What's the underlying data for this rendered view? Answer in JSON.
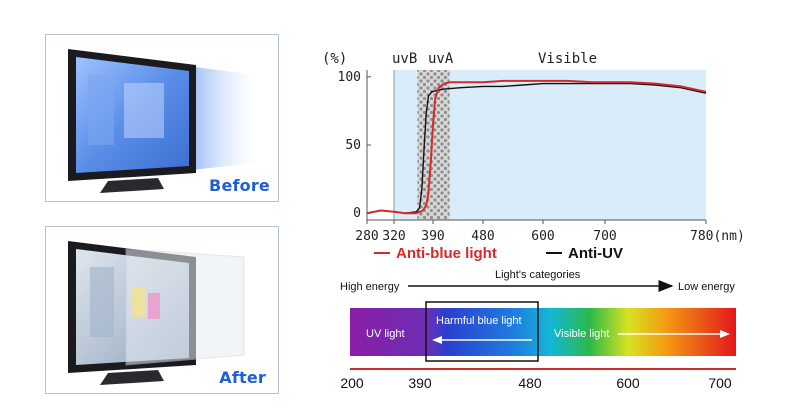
{
  "before_label": "Before",
  "after_label": "After",
  "chart_data": {
    "type": "line",
    "x_scale": "categorical-ticks",
    "x_ticks": [
      280,
      320,
      390,
      480,
      600,
      700,
      780
    ],
    "x_tick_labels": [
      "280",
      "320",
      "390",
      "480",
      "600",
      "700",
      "780(nm)"
    ],
    "y_ticks": [
      0,
      50,
      100
    ],
    "y_prefix": "(%)",
    "ylim": [
      -5,
      105
    ],
    "region_labels": [
      "uvB",
      "uvA",
      "Visible"
    ],
    "series": [
      {
        "name": "Anti-blue light",
        "color": "#d42a2a",
        "x": [
          280,
          300,
          320,
          340,
          360,
          372,
          378,
          382,
          386,
          390,
          394,
          400,
          410,
          420,
          440,
          480,
          520,
          560,
          600,
          640,
          680,
          700,
          720,
          740,
          760,
          780
        ],
        "y": [
          0,
          2,
          1,
          0,
          0,
          2,
          6,
          15,
          38,
          65,
          84,
          92,
          95,
          96,
          96,
          96,
          97,
          97,
          97,
          97,
          96,
          96,
          96,
          95,
          93,
          89
        ]
      },
      {
        "name": "Anti-UV",
        "color": "#111111",
        "x": [
          280,
          300,
          320,
          340,
          360,
          366,
          370,
          374,
          378,
          382,
          388,
          396,
          410,
          440,
          480,
          520,
          560,
          600,
          640,
          680,
          700,
          720,
          740,
          760,
          780
        ],
        "y": [
          0,
          2,
          1,
          0,
          1,
          4,
          18,
          48,
          74,
          86,
          89,
          90,
          91,
          92,
          93,
          93,
          94,
          95,
          95,
          95,
          95,
          95,
          94,
          92,
          88
        ]
      }
    ]
  },
  "spectrum": {
    "title": "Light's categories",
    "high_energy": "High energy",
    "low_energy": "Low energy",
    "uv_label": "UV light",
    "harmful_label": "Harmful blue light",
    "visible_label": "Visible light",
    "scale_ticks": [
      200,
      390,
      480,
      600,
      700
    ]
  }
}
